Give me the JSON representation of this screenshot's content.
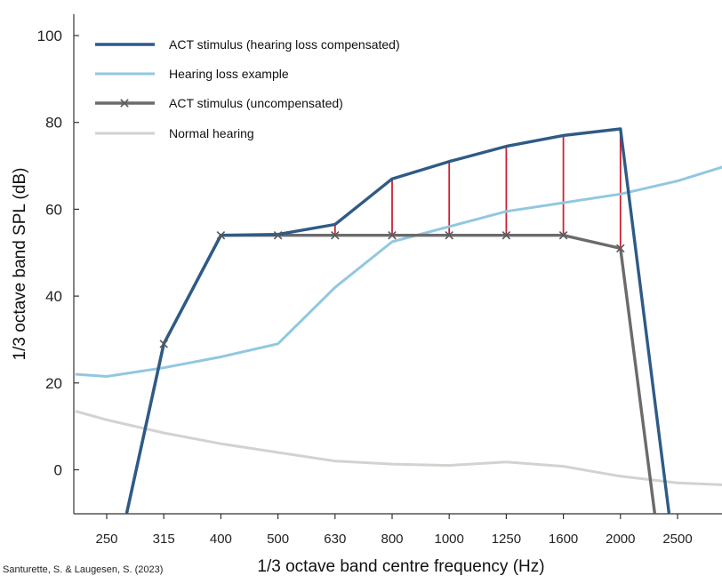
{
  "chart_data": {
    "type": "line",
    "xlabel": "1/3 octave band centre frequency (Hz)",
    "ylabel": "1/3 octave band SPL (dB)",
    "ylim": [
      -10,
      105
    ],
    "yticks": [
      0,
      20,
      40,
      60,
      80,
      100
    ],
    "categories": [
      "250",
      "315",
      "400",
      "500",
      "630",
      "800",
      "1000",
      "1250",
      "1600",
      "2000",
      "2500"
    ],
    "grid": false,
    "legend_position": "top-left",
    "credit": "Santurette, S. & Laugesen, S. (2023)",
    "series": [
      {
        "name": "ACT stimulus (hearing loss compensated)",
        "color": "#2e5b86",
        "marker": "none",
        "points": [
          [
            0.35,
            -10
          ],
          [
            1,
            29
          ],
          [
            2,
            54
          ],
          [
            3,
            54.2
          ],
          [
            4,
            56.5
          ],
          [
            5,
            67
          ],
          [
            6,
            71
          ],
          [
            7,
            74.5
          ],
          [
            8,
            77
          ],
          [
            9,
            78.5
          ],
          [
            9.85,
            -10
          ]
        ]
      },
      {
        "name": "Hearing loss example",
        "color": "#92c7e0",
        "marker": "none",
        "points": [
          [
            -0.55,
            22
          ],
          [
            0,
            21.5
          ],
          [
            1,
            23.5
          ],
          [
            2,
            26
          ],
          [
            3,
            29
          ],
          [
            4,
            42
          ],
          [
            5,
            52.5
          ],
          [
            6,
            56
          ],
          [
            7,
            59.5
          ],
          [
            8,
            61.5
          ],
          [
            9,
            63.5
          ],
          [
            10,
            66.5
          ],
          [
            10.85,
            70
          ]
        ]
      },
      {
        "name": "ACT stimulus (uncompensated)",
        "color": "#6b6b6b",
        "marker": "x",
        "points": [
          [
            0.35,
            -10
          ],
          [
            1,
            29
          ],
          [
            2,
            54
          ],
          [
            3,
            54
          ],
          [
            4,
            54
          ],
          [
            5,
            54
          ],
          [
            6,
            54
          ],
          [
            7,
            54
          ],
          [
            8,
            54
          ],
          [
            9,
            51
          ],
          [
            9.6,
            -10
          ]
        ]
      },
      {
        "name": "Normal hearing",
        "color": "#d2d2cf",
        "marker": "none",
        "points": [
          [
            -0.55,
            13.5
          ],
          [
            0,
            11.5
          ],
          [
            1,
            8.5
          ],
          [
            2,
            6
          ],
          [
            3,
            4
          ],
          [
            4,
            2
          ],
          [
            5,
            1.3
          ],
          [
            6,
            1
          ],
          [
            7,
            1.8
          ],
          [
            8,
            0.8
          ],
          [
            9,
            -1.5
          ],
          [
            10,
            -3
          ],
          [
            10.85,
            -3.5
          ]
        ]
      }
    ],
    "compensation_gaps": {
      "color": "#cc2233",
      "categories": [
        "630",
        "800",
        "1000",
        "1250",
        "1600",
        "2000"
      ]
    }
  }
}
